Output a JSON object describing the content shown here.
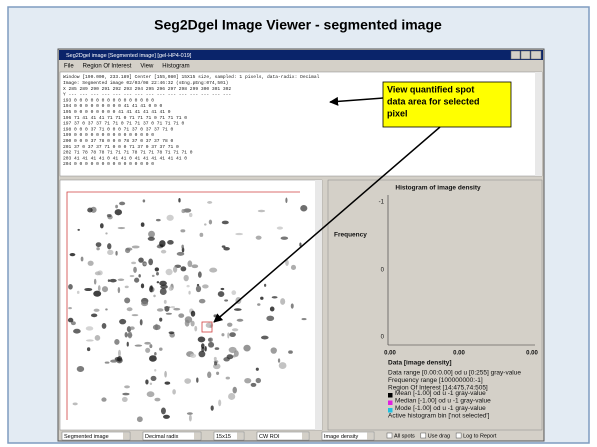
{
  "slide_title": "Seg2Dgel Image Viewer - segmented image",
  "window": {
    "title": "Seg2Dgel image [Segmented image] [gel-HP4-019]",
    "menu": [
      "File",
      "Region Of Interest",
      "View",
      "Histogram"
    ],
    "data_lines": [
      "Window [190.000, 233.189] Center [155,080] 15X15 size, sampled: 1 pixels, data-radix: Decimal",
      "Image: Segmented image 02/03/08 22:46:32 (sEng.pEng:074,501)",
      "    X  285  289  290  291  292  293  294  295  296  297  298  299  300  301  302",
      "    Y  ---  ---  ---  ---  ---  ---  ---  ---  ---  ---  ---  ---  ---  ---  ---",
      "  193    0    0    0    0    0    0    0    0    0    0    0    0    0    0    0",
      "  194    0    0    0    0    0    0    0    0    0   41   41   41    0    0    0",
      "  195    0    0    0    0    0    0    0    0   41   41   41   41   41   41    0",
      "  196   71   41   41   41   71   71    0   71   71   71    0   71   71   71    0",
      "  197   37    0   37   37   71   71    0   71   71   37    0   71   71   71    0",
      "  198    0    0    0   37   71    0    0    0   71   37    0   37   37   71    0",
      "  199    0    0    0    0    0    0    0    0    0    0    0    0    0    0    0",
      "  200    0    0    0   37   78    0    0    0   78   37    0   37   37   78    0",
      "  201   37    0   37   37   71    0    0    0   71   37    0   37   37   71    0",
      "  202   71   78   78   78   71   71   71   78   71   71   78   71   71   71    0",
      "  203   41   41   41   41    0   41   41    0   41   41   41   41   41   41    0",
      "  204    0    0    0    0    0    0    0    0    0    0    0    0    0    0    0"
    ],
    "callout": [
      "View quantified spot",
      "data area for selected",
      "pixel"
    ],
    "histogram": {
      "title": "Histogram of image density",
      "y_label": "Frequency",
      "y_ticks": [
        "-1",
        "0",
        "0"
      ],
      "x_ticks": [
        "0.00",
        "0.00",
        "0.00"
      ],
      "x_label": "Data [image density]",
      "info": [
        "Data range [0.00:0.00] od u [0:255] gray-value",
        "Frequency range [100000000:-1]",
        "Region Of Interest [14:475,74:505]",
        "Mean [-1.00] od u -1 gray-value",
        "Median [-1.00] od u -1 gray-value",
        "Mode [-1.00] od u -1 gray-value",
        "Active histogram bin ['not selected']"
      ]
    },
    "dropdowns": [
      "Segmented image",
      "Decimal radix",
      "15x15",
      "CW ROI",
      "Image density"
    ],
    "checkboxes": [
      "All spots",
      "Use drag",
      "Log to Report"
    ]
  }
}
